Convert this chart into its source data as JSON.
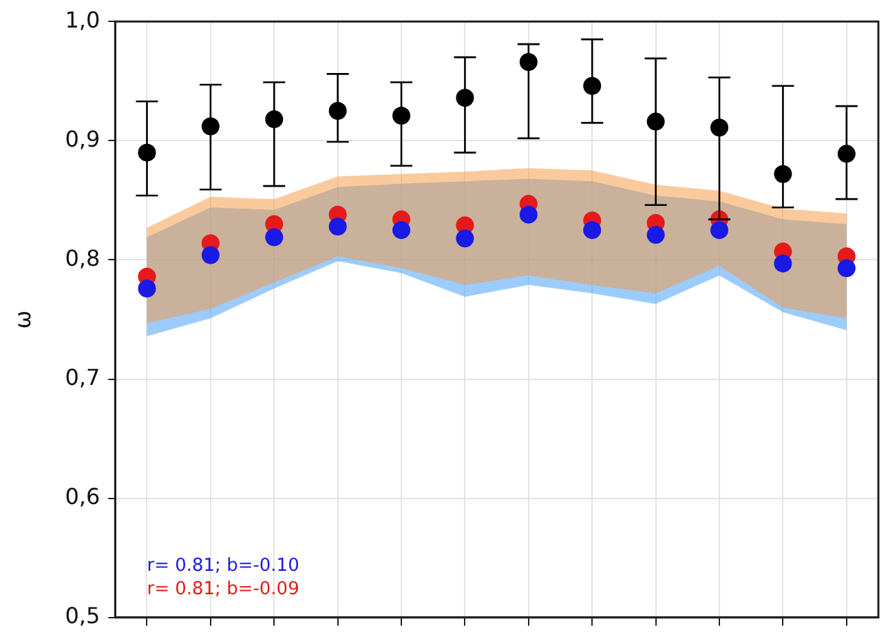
{
  "chart_data": {
    "type": "scatter",
    "ylabel": "ω",
    "categories": [
      null,
      null,
      null,
      null,
      null,
      null,
      null,
      null,
      null,
      null,
      null,
      null
    ],
    "ylim": [
      0.5,
      1.0
    ],
    "yticks": [
      {
        "value": 0.5,
        "label": "0,5"
      },
      {
        "value": 0.6,
        "label": "0,6"
      },
      {
        "value": 0.7,
        "label": "0,7"
      },
      {
        "value": 0.8,
        "label": "0,8"
      },
      {
        "value": 0.9,
        "label": "0,9"
      },
      {
        "value": 1.0,
        "label": "1,0"
      }
    ],
    "tick_labels": "y",
    "grid": true,
    "marker": "circle",
    "series": [
      {
        "color": "#000000",
        "values": [
          0.89,
          0.912,
          0.918,
          0.925,
          0.921,
          0.936,
          0.966,
          0.946,
          0.916,
          0.911,
          0.872,
          0.889
        ],
        "errors": [
          [
            0.854,
            0.933
          ],
          [
            0.859,
            0.947
          ],
          [
            0.862,
            0.949
          ],
          [
            0.899,
            0.956
          ],
          [
            0.879,
            0.949
          ],
          [
            0.89,
            0.97
          ],
          [
            0.902,
            0.981
          ],
          [
            0.915,
            0.985
          ],
          [
            0.846,
            0.969
          ],
          [
            0.834,
            0.953
          ],
          [
            0.844,
            0.946
          ],
          [
            0.851,
            0.929
          ]
        ]
      },
      {
        "color": "#1a1ae6",
        "values": [
          0.776,
          0.804,
          0.819,
          0.828,
          0.825,
          0.818,
          0.838,
          0.825,
          0.821,
          0.825,
          0.797,
          0.793
        ],
        "lower": [
          0.736,
          0.751,
          0.776,
          0.799,
          0.789,
          0.769,
          0.779,
          0.772,
          0.763,
          0.787,
          0.756,
          0.741
        ],
        "upper": [
          0.819,
          0.844,
          0.842,
          0.861,
          0.864,
          0.866,
          0.868,
          0.866,
          0.854,
          0.849,
          0.834,
          0.83
        ]
      },
      {
        "color": "#e61a1a",
        "values": [
          0.786,
          0.814,
          0.83,
          0.838,
          0.834,
          0.829,
          0.847,
          0.833,
          0.831,
          0.834,
          0.807,
          0.803
        ],
        "lower": [
          0.747,
          0.759,
          0.781,
          0.803,
          0.793,
          0.779,
          0.787,
          0.779,
          0.772,
          0.795,
          0.76,
          0.751
        ],
        "upper": [
          0.827,
          0.853,
          0.851,
          0.87,
          0.872,
          0.874,
          0.877,
          0.875,
          0.863,
          0.858,
          0.843,
          0.839
        ]
      }
    ],
    "annotations": [
      "r= 0.81; b=-0.10",
      "r= 0.81; b=-0.09"
    ]
  }
}
